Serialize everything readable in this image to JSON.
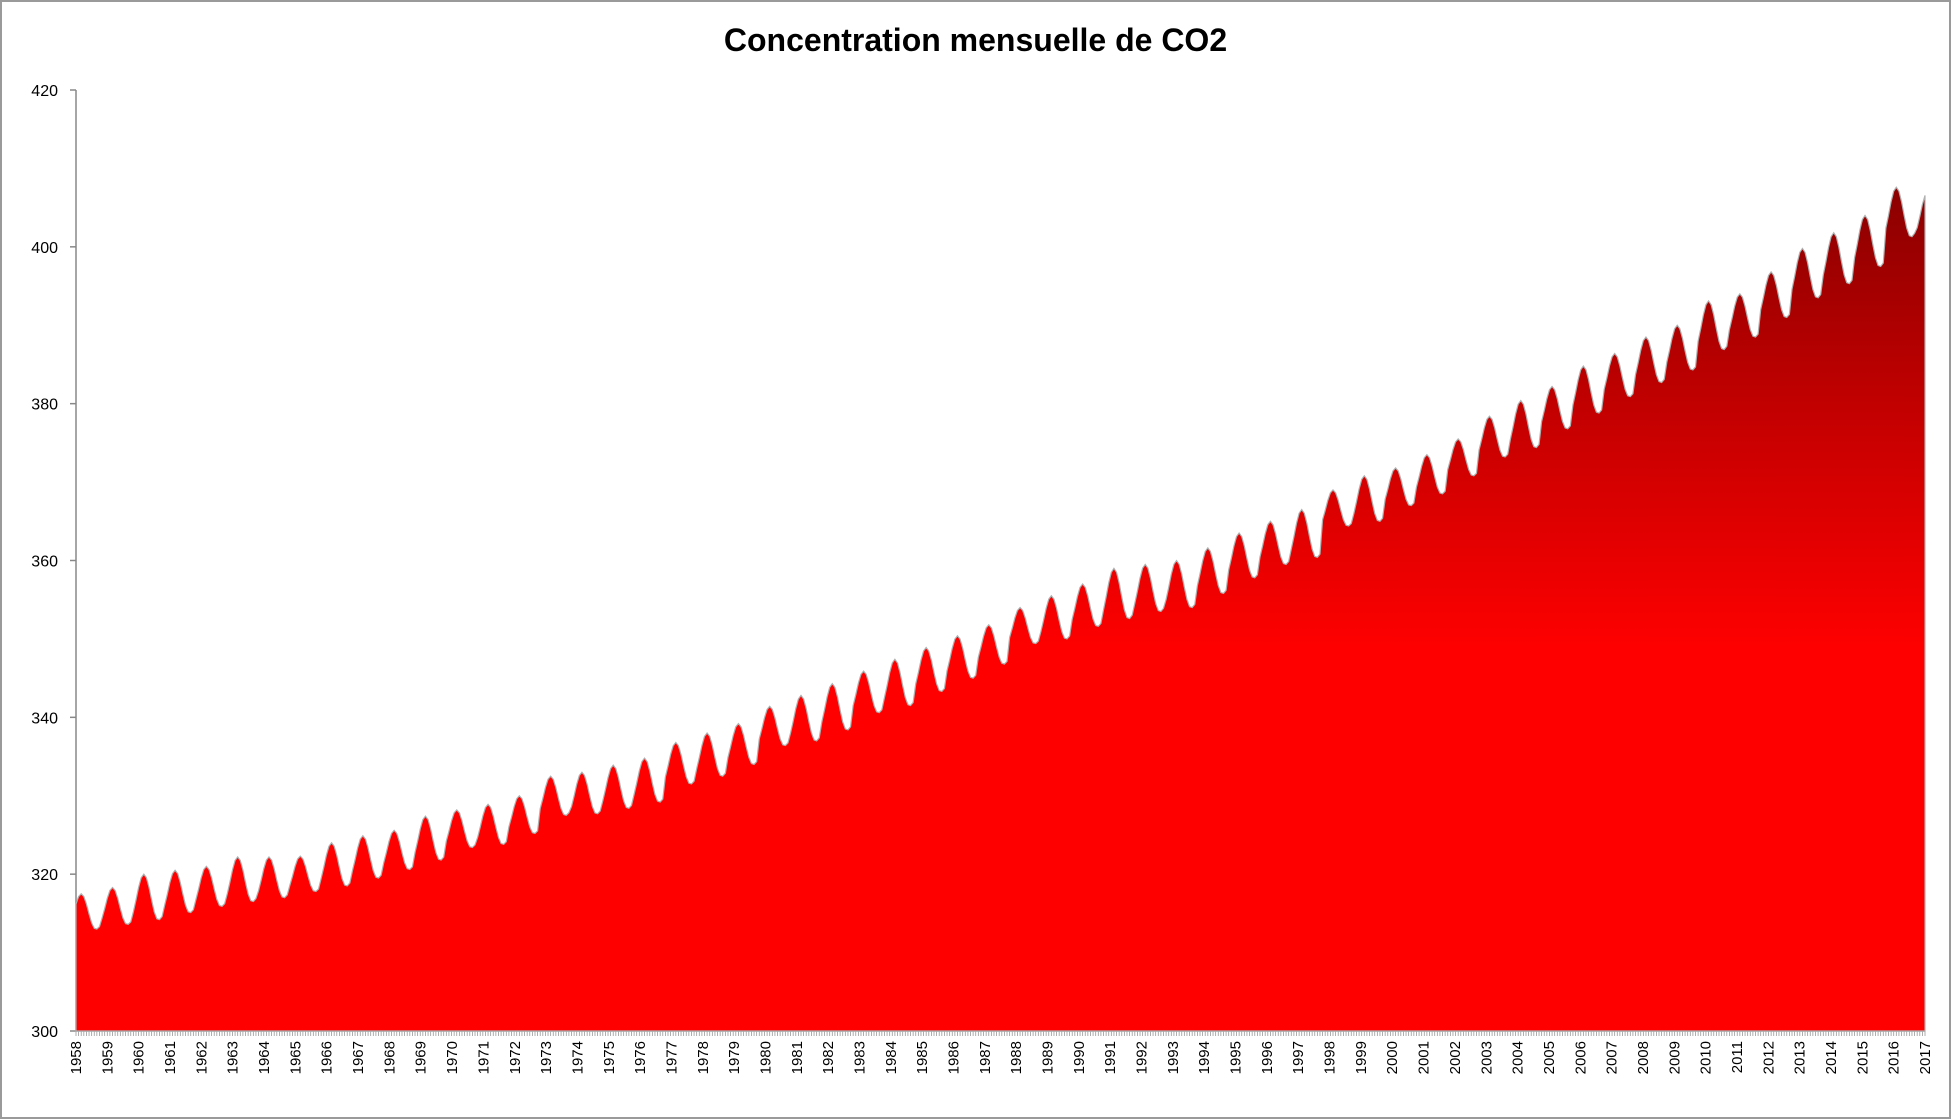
{
  "chart_data": {
    "type": "area",
    "title": "Concentration mensuelle de CO2",
    "xlabel": "",
    "ylabel": "",
    "ylim": [
      300,
      420
    ],
    "yticks": [
      300,
      320,
      340,
      360,
      380,
      400,
      420
    ],
    "x_tick_labels": [
      "1958",
      "1959",
      "1960",
      "1961",
      "1962",
      "1963",
      "1964",
      "1965",
      "1966",
      "1967",
      "1968",
      "1969",
      "1970",
      "1971",
      "1972",
      "1973",
      "1974",
      "1975",
      "1976",
      "1977",
      "1978",
      "1979",
      "1980",
      "1981",
      "1982",
      "1983",
      "1984",
      "1985",
      "1986",
      "1987",
      "1988",
      "1989",
      "1990",
      "1991",
      "1992",
      "1993",
      "1994",
      "1995",
      "1996",
      "1997",
      "1998",
      "1999",
      "2000",
      "2001",
      "2002",
      "2003",
      "2004",
      "2005",
      "2006",
      "2007",
      "2008",
      "2009",
      "2010",
      "2011",
      "2012",
      "2013",
      "2014",
      "2015",
      "2016",
      "2017"
    ],
    "legend": "none",
    "grid": false,
    "series": [
      {
        "frequency": "monthly",
        "start": "1958-03",
        "annual_max": [
          317.5,
          318.3,
          320.0,
          320.5,
          321.0,
          322.2,
          322.2,
          322.3,
          324.0,
          324.9,
          325.6,
          327.4,
          328.2,
          328.9,
          330.0,
          332.5,
          333.0,
          333.9,
          334.8,
          336.8,
          338.0,
          339.2,
          341.4,
          342.8,
          344.3,
          345.9,
          347.4,
          348.9,
          350.4,
          351.8,
          354.0,
          355.5,
          357.0,
          359.0,
          359.5,
          360.0,
          361.6,
          363.5,
          365.0,
          366.5,
          369.0,
          370.8,
          371.8,
          373.5,
          375.5,
          378.4,
          380.4,
          382.2,
          384.8,
          386.4,
          388.5,
          390.0,
          393.1,
          394.0,
          396.8,
          399.8,
          401.8,
          404.0,
          407.6,
          407.0
        ],
        "annual_min": [
          313.0,
          313.6,
          314.2,
          315.1,
          315.9,
          316.5,
          317.0,
          317.8,
          318.5,
          319.5,
          320.6,
          321.8,
          323.4,
          323.8,
          325.2,
          327.5,
          327.7,
          328.4,
          329.2,
          331.5,
          332.5,
          334.0,
          336.4,
          337.0,
          338.4,
          340.6,
          341.5,
          343.3,
          345.0,
          346.8,
          349.4,
          350.0,
          351.6,
          352.6,
          353.5,
          354.0,
          355.8,
          357.8,
          359.5,
          360.4,
          364.4,
          365.0,
          367.0,
          368.5,
          370.8,
          373.2,
          374.4,
          376.8,
          378.8,
          380.9,
          382.7,
          384.3,
          386.9,
          388.5,
          391.0,
          393.5,
          395.3,
          397.5,
          401.3,
          401.5
        ],
        "min_month": "October",
        "max_month": "May",
        "color_bottom": "#ff0000",
        "color_top": "#8b0000"
      }
    ]
  }
}
